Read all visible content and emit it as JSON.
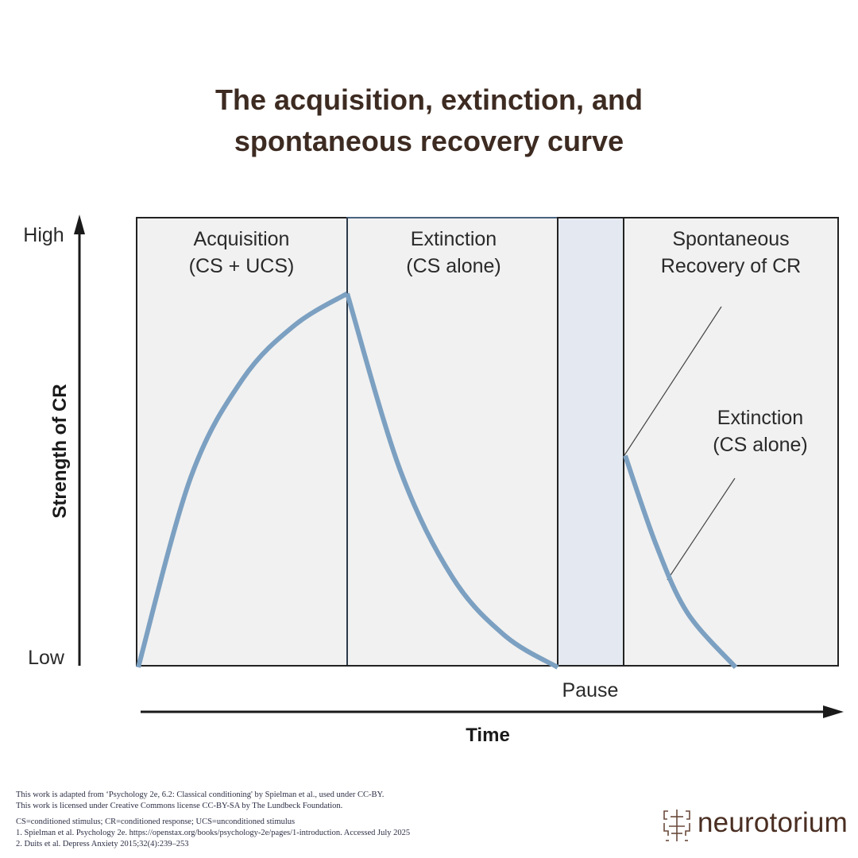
{
  "title": {
    "line1": "The acquisition, extinction, and",
    "line2": "spontaneous recovery curve"
  },
  "axes": {
    "y_label": "Strength of CR",
    "y_high": "High",
    "y_low": "Low",
    "x_label": "Time"
  },
  "phases": [
    {
      "id": "acquisition",
      "line1": "Acquisition",
      "line2": "(CS + UCS)",
      "fill": "#f1f1f1"
    },
    {
      "id": "extinction",
      "line1": "Extinction",
      "line2": "(CS alone)",
      "fill": "#f1f1f1"
    },
    {
      "id": "pause",
      "label": "Pause",
      "fill": "#e4e9f1"
    },
    {
      "id": "spontaneous-recovery",
      "line1": "Spontaneous",
      "line2": "Recovery of CR",
      "fill": "#f1f1f1"
    }
  ],
  "annotation": {
    "line1": "Extinction",
    "line2": "(CS alone)"
  },
  "colors": {
    "curve": "#7ca0c1",
    "title": "#3d2b22",
    "axis": "#1a1a1a",
    "extinction_border": "#4a6280",
    "logo": "#4a2e22"
  },
  "chart_data": {
    "type": "line",
    "title": "The acquisition, extinction, and spontaneous recovery curve",
    "xlabel": "Time",
    "ylabel": "Strength of CR",
    "y_ticks": [
      "Low",
      "High"
    ],
    "ylim": [
      0,
      1
    ],
    "phases": [
      "Acquisition (CS + UCS)",
      "Extinction (CS alone)",
      "Pause",
      "Spontaneous Recovery of CR"
    ],
    "series": [
      {
        "name": "Acquisition",
        "x": [
          0,
          0.25,
          0.5,
          0.75,
          1.0
        ],
        "y": [
          0.0,
          0.42,
          0.64,
          0.76,
          0.83
        ]
      },
      {
        "name": "Extinction",
        "x": [
          1.0,
          1.25,
          1.5,
          1.75,
          2.0
        ],
        "y": [
          0.83,
          0.44,
          0.2,
          0.07,
          0.0
        ]
      },
      {
        "name": "Spontaneous recovery and re-extinction",
        "x": [
          2.3,
          2.45,
          2.6,
          2.83
        ],
        "y": [
          0.47,
          0.27,
          0.12,
          0.0
        ]
      }
    ]
  },
  "footer": {
    "attribution1": "This work is adapted from ‘Psychology 2e, 6.2: Classical conditioning' by Spielman et al., used under CC-BY.",
    "attribution2": "This work is licensed under Creative Commons license CC-BY-SA by The Lundbeck Foundation.",
    "abbreviations": "CS=conditioned stimulus; CR=conditioned response; UCS=unconditioned stimulus",
    "ref1": "1. Spielman et al. Psychology 2e. https://openstax.org/books/psychology-2e/pages/1-introduction. Accessed July 2025",
    "ref2": "2. Duits et al. Depress Anxiety 2015;32(4):239–253"
  },
  "logo": {
    "icon": "brain-circuit-icon",
    "text": "neurotorium"
  }
}
